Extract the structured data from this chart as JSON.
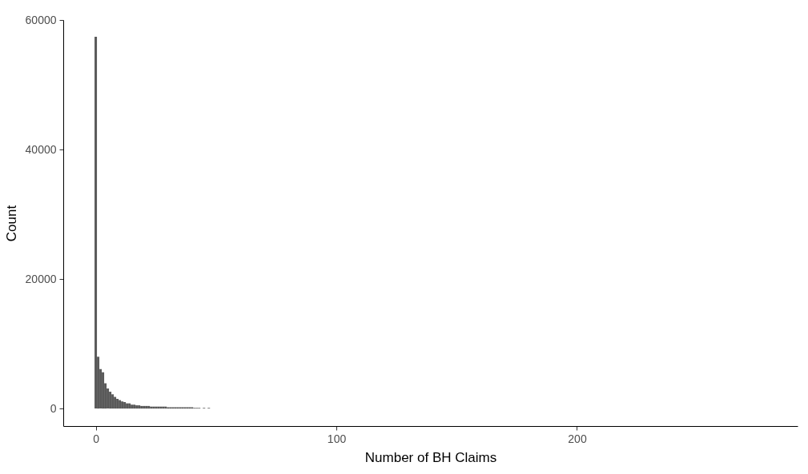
{
  "chart_data": {
    "type": "histogram",
    "xlabel": "Number of BH Claims",
    "ylabel": "Count",
    "bins": [
      -0.5,
      0.5,
      1.5,
      2.5,
      3.5,
      4.5,
      5.5,
      6.5,
      7.5,
      8.5,
      9.5,
      10.5,
      11.5,
      12.5,
      13.5,
      14.5,
      15.5,
      16.5,
      17.5,
      18.5,
      19.5,
      20.5,
      21.5,
      22.5,
      23.5,
      24.5,
      25.5,
      26.5,
      27.5,
      28.5,
      29.5,
      30.5,
      31.5,
      32.5,
      33.5,
      34.5,
      35.5,
      36.5,
      37.5,
      38.5,
      39.5,
      40.5,
      41.5,
      42.5,
      43.5,
      44.5,
      45.5,
      46.5,
      47.5
    ],
    "values": [
      57400,
      8000,
      6100,
      5600,
      3900,
      3100,
      2600,
      2200,
      1800,
      1500,
      1300,
      1100,
      1000,
      800,
      800,
      600,
      600,
      500,
      500,
      400,
      400,
      400,
      400,
      300,
      300,
      300,
      300,
      300,
      300,
      300,
      200,
      200,
      200,
      200,
      200,
      200,
      200,
      200,
      200,
      200,
      200,
      100,
      100,
      100,
      0,
      100,
      0,
      100
    ],
    "color": "#595959",
    "xlim": [
      -13.5,
      291.7
    ],
    "xticks": [
      0,
      100,
      200
    ],
    "ylim": [
      -2700,
      60000
    ],
    "yticks": [
      0,
      20000,
      40000,
      60000
    ],
    "grid": false
  }
}
